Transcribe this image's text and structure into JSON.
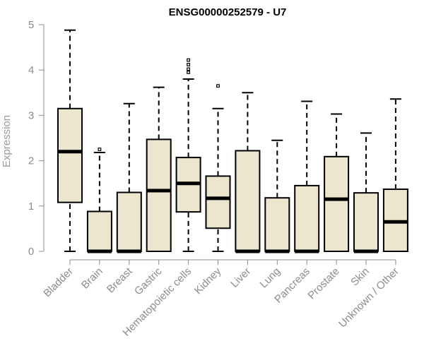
{
  "chart_data": {
    "type": "boxplot",
    "title": "ENSG00000252579 - U7",
    "xlabel": "",
    "ylabel": "Expression",
    "ylim": [
      0,
      5
    ],
    "yticks": [
      "0",
      "1",
      "2",
      "3",
      "4",
      "5"
    ],
    "grid": false,
    "legend": "none",
    "categories": [
      "Bladder",
      "Brain",
      "Breast",
      "Gastric",
      "Hematopoietic cells",
      "Kidney",
      "Liver",
      "Lung",
      "Pancreas",
      "Prostate",
      "Skin",
      "Unknown / Other"
    ],
    "boxes": [
      {
        "whisker_low": 0,
        "q1": 1.08,
        "median": 2.2,
        "q3": 3.15,
        "whisker_high": 4.88,
        "outliers": []
      },
      {
        "whisker_low": 0,
        "q1": 0,
        "median": 0,
        "q3": 0.88,
        "whisker_high": 2.18,
        "outliers": [
          2.25
        ]
      },
      {
        "whisker_low": 0,
        "q1": 0,
        "median": 0,
        "q3": 1.3,
        "whisker_high": 3.26,
        "outliers": []
      },
      {
        "whisker_low": 0,
        "q1": 0,
        "median": 1.34,
        "q3": 2.47,
        "whisker_high": 3.62,
        "outliers": []
      },
      {
        "whisker_low": 0,
        "q1": 0.87,
        "median": 1.5,
        "q3": 2.07,
        "whisker_high": 3.8,
        "outliers": [
          3.95,
          4.02,
          4.12,
          4.22
        ]
      },
      {
        "whisker_low": 0,
        "q1": 0.51,
        "median": 1.17,
        "q3": 1.66,
        "whisker_high": 3.15,
        "outliers": [
          3.65
        ]
      },
      {
        "whisker_low": 0,
        "q1": 0,
        "median": 0,
        "q3": 2.22,
        "whisker_high": 3.5,
        "outliers": []
      },
      {
        "whisker_low": 0,
        "q1": 0,
        "median": 0,
        "q3": 1.18,
        "whisker_high": 2.45,
        "outliers": []
      },
      {
        "whisker_low": 0,
        "q1": 0,
        "median": 0,
        "q3": 1.45,
        "whisker_high": 3.31,
        "outliers": []
      },
      {
        "whisker_low": 0,
        "q1": 0,
        "median": 1.15,
        "q3": 2.09,
        "whisker_high": 3.03,
        "outliers": []
      },
      {
        "whisker_low": 0,
        "q1": 0,
        "median": 0,
        "q3": 1.29,
        "whisker_high": 2.61,
        "outliers": []
      },
      {
        "whisker_low": 0,
        "q1": 0,
        "median": 0.65,
        "q3": 1.37,
        "whisker_high": 3.36,
        "outliers": []
      }
    ],
    "colors": {
      "box_fill": "#ede6cf",
      "box_stroke": "#000000",
      "axis": "#8c8c8c",
      "text": "#8c8c8c"
    }
  }
}
